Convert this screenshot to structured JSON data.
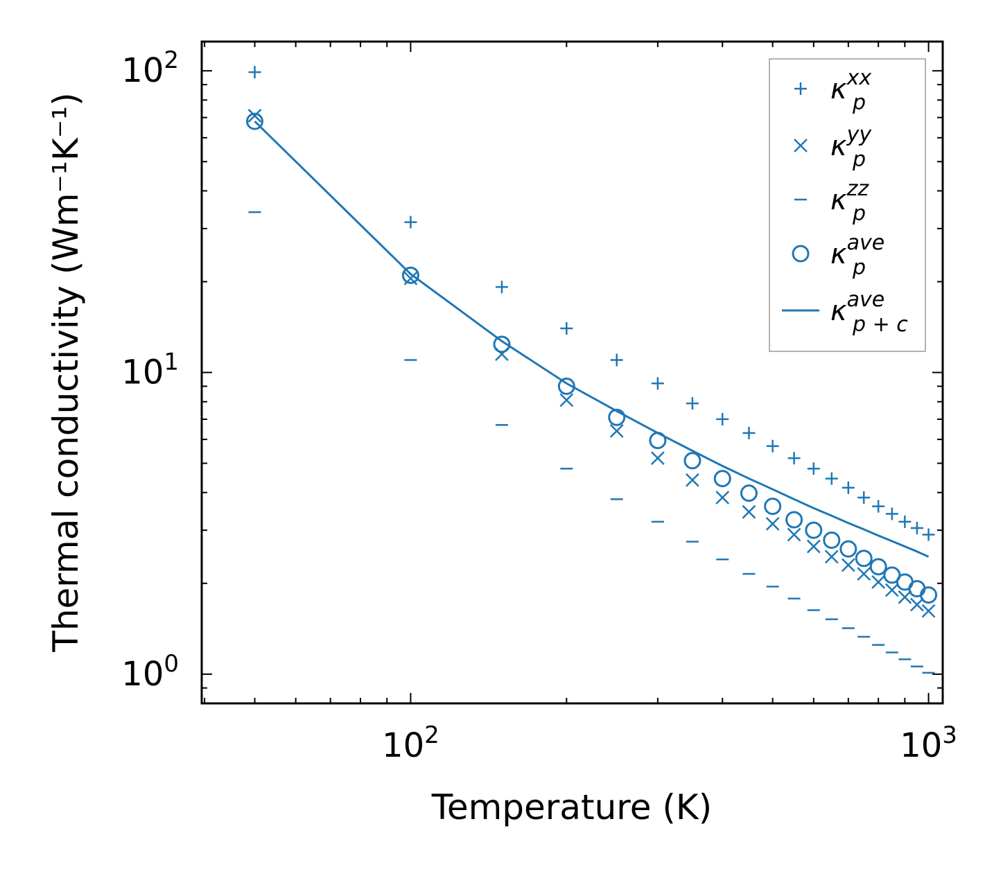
{
  "chart_data": {
    "type": "scatter",
    "xscale": "log",
    "yscale": "log",
    "xlabel": "Temperature (K)",
    "ylabel": "Thermal conductivity (Wm⁻¹K⁻¹)",
    "xlim": [
      39.5,
      1065
    ],
    "ylim": [
      0.8,
      125
    ],
    "xticks": [
      {
        "base": "10",
        "exp": "2"
      },
      {
        "base": "10",
        "exp": "3"
      }
    ],
    "yticks": [
      {
        "base": "10",
        "exp": "0"
      },
      {
        "base": "10",
        "exp": "1"
      },
      {
        "base": "10",
        "exp": "2"
      }
    ],
    "color": "#1f77b4",
    "legend_position": "top-right",
    "x": [
      50,
      100,
      150,
      200,
      250,
      300,
      350,
      400,
      450,
      500,
      550,
      600,
      650,
      700,
      750,
      800,
      850,
      900,
      950,
      1000
    ],
    "series": [
      {
        "name": "kappa_p_xx",
        "marker": "plus",
        "label_main": "κ",
        "label_sub": "p",
        "label_sup": "xx",
        "values": [
          99,
          31.5,
          19.2,
          14.0,
          11.0,
          9.2,
          7.9,
          7.0,
          6.3,
          5.7,
          5.2,
          4.8,
          4.45,
          4.15,
          3.85,
          3.6,
          3.4,
          3.2,
          3.05,
          2.9
        ]
      },
      {
        "name": "kappa_p_yy",
        "marker": "x",
        "label_main": "κ",
        "label_sub": "p",
        "label_sup": "yy",
        "values": [
          71,
          20.5,
          11.5,
          8.1,
          6.4,
          5.2,
          4.4,
          3.85,
          3.45,
          3.15,
          2.9,
          2.65,
          2.45,
          2.3,
          2.15,
          2.02,
          1.9,
          1.8,
          1.7,
          1.62
        ]
      },
      {
        "name": "kappa_p_zz",
        "marker": "dash",
        "label_main": "κ",
        "label_sub": "p",
        "label_sup": "zz",
        "values": [
          34,
          11.0,
          6.7,
          4.8,
          3.8,
          3.2,
          2.75,
          2.4,
          2.15,
          1.95,
          1.78,
          1.63,
          1.52,
          1.42,
          1.33,
          1.25,
          1.18,
          1.12,
          1.06,
          1.01
        ]
      },
      {
        "name": "kappa_p_ave",
        "marker": "circle",
        "label_main": "κ",
        "label_sub": "p",
        "label_sup": "ave",
        "values": [
          68,
          21.0,
          12.4,
          9.0,
          7.1,
          5.95,
          5.1,
          4.45,
          3.98,
          3.6,
          3.25,
          3.0,
          2.78,
          2.6,
          2.42,
          2.27,
          2.13,
          2.02,
          1.92,
          1.83
        ]
      },
      {
        "name": "kappa_p+c_ave",
        "marker": "line",
        "label_main": "κ",
        "label_sub": "p + c",
        "label_sup": "ave",
        "values": [
          68,
          21.2,
          12.7,
          9.2,
          7.45,
          6.3,
          5.5,
          4.9,
          4.45,
          4.1,
          3.8,
          3.55,
          3.35,
          3.17,
          3.02,
          2.88,
          2.76,
          2.65,
          2.55,
          2.45
        ]
      }
    ]
  }
}
